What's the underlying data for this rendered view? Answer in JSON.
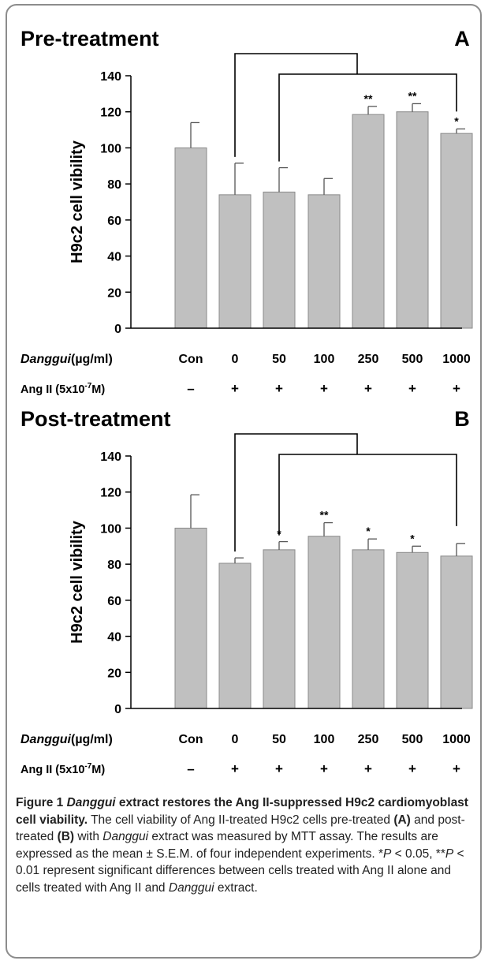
{
  "chart_data": [
    {
      "type": "bar",
      "title": "Pre-treatment",
      "panel_letter": "A",
      "ylabel": "H9c2 cell vibility",
      "ylim": [
        0,
        140
      ],
      "yticks": [
        "0",
        "20",
        "40",
        "60",
        "80",
        "100",
        "120",
        "140"
      ],
      "categories": [
        "Con",
        "0",
        "50",
        "100",
        "250",
        "500",
        "1000"
      ],
      "values": [
        100,
        74,
        75.5,
        74,
        118.5,
        120,
        108
      ],
      "errors": [
        14,
        17.5,
        13.5,
        9,
        4.5,
        4.5,
        2.5
      ],
      "significance": [
        "",
        "",
        "",
        "",
        "**",
        "**",
        "*"
      ],
      "row1_label": "Danggui",
      "row1_unit": "(µg/ml)",
      "row2_label": "Ang II (5x10",
      "row2_exp": "-7",
      "row2_tail": "M)",
      "ang_ii": [
        "–",
        "+",
        "+",
        "+",
        "+",
        "+",
        "+"
      ],
      "brackets": [
        {
          "from": 0,
          "to": 6
        },
        {
          "from": 1,
          "to": 6
        }
      ]
    },
    {
      "type": "bar",
      "title": "Post-treatment",
      "panel_letter": "B",
      "ylabel": "H9c2 cell vibility",
      "ylim": [
        0,
        140
      ],
      "yticks": [
        "0",
        "20",
        "40",
        "60",
        "80",
        "100",
        "120",
        "140"
      ],
      "categories": [
        "Con",
        "0",
        "50",
        "100",
        "250",
        "500",
        "1000"
      ],
      "values": [
        100,
        80.5,
        88,
        95.5,
        88,
        86.5,
        84.5
      ],
      "errors": [
        18.5,
        3,
        4.5,
        7.5,
        6,
        3.5,
        7
      ],
      "significance": [
        "",
        "",
        "*",
        "**",
        "*",
        "*",
        ""
      ],
      "row1_label": "Danggui",
      "row1_unit": "(µg/ml)",
      "row2_label": "Ang II (5x10",
      "row2_exp": "-7",
      "row2_tail": "M)",
      "ang_ii": [
        "–",
        "+",
        "+",
        "+",
        "+",
        "+",
        "+"
      ],
      "brackets": [
        {
          "from": 0,
          "to": 6
        },
        {
          "from": 1,
          "to": 6
        }
      ]
    }
  ],
  "caption": {
    "figure_label": "Figure 1",
    "title_italic": "Danggui",
    "title_rest": " extract restores the Ang II-suppressed H9c2 cardiomyoblast cell viability.",
    "body": [
      {
        "t": " The cell viability of Ang II-treated H9c2 cells pre-treated ",
        "s": "n"
      },
      {
        "t": "(A)",
        "s": "b"
      },
      {
        "t": " and post-treated ",
        "s": "n"
      },
      {
        "t": "(B)",
        "s": "b"
      },
      {
        "t": " with ",
        "s": "n"
      },
      {
        "t": "Danggui",
        "s": "i"
      },
      {
        "t": " extract was measured by MTT assay. The results are expressed as the mean ± S.E.M. of four independent experiments. *",
        "s": "n"
      },
      {
        "t": "P",
        "s": "i"
      },
      {
        "t": " < 0.05, **",
        "s": "n"
      },
      {
        "t": "P",
        "s": "i"
      },
      {
        "t": " < 0.01 represent significant differences between cells treated with Ang II alone and cells treated with Ang II and ",
        "s": "n"
      },
      {
        "t": "Danggui",
        "s": "i"
      },
      {
        "t": " extract.",
        "s": "n"
      }
    ]
  },
  "colors": {
    "bar": "#c0c0c0",
    "bar_stroke": "#8a8a8a",
    "axis": "#000000",
    "frame": "#8c8c8c"
  }
}
